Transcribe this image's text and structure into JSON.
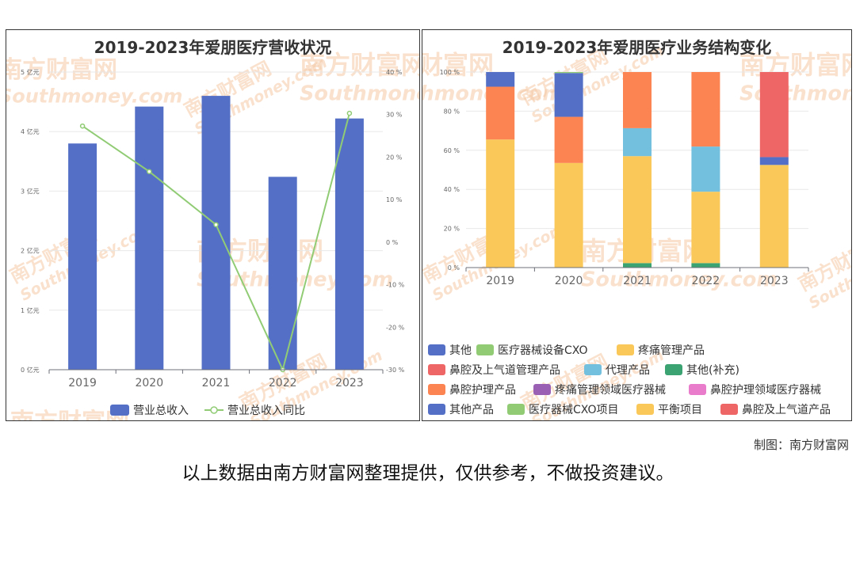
{
  "left_panel": {
    "title": "2019-2023年爱朋医疗营收状况"
  },
  "right_panel": {
    "title": "2019-2023年爱朋医疗业务结构变化"
  },
  "watermark": {
    "cn": "南方财富网",
    "en": "Southmoney.com"
  },
  "credit": "制图：南方财富网",
  "disclaimer": "以上数据由南方财富网整理提供，仅供参考，不做投资建议。",
  "colors": {
    "bar": "#5470c6",
    "line": "#91cc75",
    "watermark": "#f5c9a5"
  },
  "chart_data": [
    {
      "type": "bar",
      "title": "2019-2023年爱朋医疗营收状况",
      "categories": [
        "2019",
        "2020",
        "2021",
        "2022",
        "2023"
      ],
      "yleft_ticks": [
        "0 亿元",
        "1 亿元",
        "2 亿元",
        "3 亿元",
        "4 亿元",
        "5 亿元"
      ],
      "yright_ticks": [
        "-30 %",
        "-20 %",
        "-10 %",
        "0 %",
        "10 %",
        "20 %",
        "30 %",
        "40 %"
      ],
      "ylim_left": [
        0,
        5
      ],
      "ylim_right": [
        -30,
        40
      ],
      "series": [
        {
          "name": "营业总收入",
          "type": "bar",
          "axis": "left",
          "color": "#5470c6",
          "values": [
            3.8,
            4.42,
            4.6,
            3.24,
            4.22
          ]
        },
        {
          "name": "营业总收入同比",
          "type": "line",
          "axis": "right",
          "color": "#91cc75",
          "values": [
            27.3,
            16.6,
            4.1,
            -30.0,
            30.3
          ]
        }
      ],
      "legend_position": "bottom",
      "grid": true
    },
    {
      "type": "bar",
      "stacked": true,
      "title": "2019-2023年爱朋医疗业务结构变化",
      "categories": [
        "2019",
        "2020",
        "2021",
        "2022",
        "2023"
      ],
      "y_ticks": [
        "0 %",
        "20 %",
        "40 %",
        "60 %",
        "80 %",
        "100 %"
      ],
      "ylim": [
        0,
        100
      ],
      "series": [
        {
          "name": "其他",
          "color": "#5470c6",
          "values": [
            7.5,
            0,
            0,
            0,
            0
          ]
        },
        {
          "name": "医疗器械设备CXO",
          "color": "#91cc75",
          "values": [
            0,
            0.5,
            0,
            0,
            0
          ]
        },
        {
          "name": "疼痛管理产品",
          "color": "#fac858",
          "values": [
            65.5,
            53.5,
            54.7,
            36.5,
            0
          ]
        },
        {
          "name": "鼻腔及上气道管理产品",
          "color": "#ee6666",
          "values": [
            0,
            0,
            0,
            0,
            0
          ]
        },
        {
          "name": "代理产品",
          "color": "#73c0de",
          "values": [
            0,
            0,
            14.3,
            23.1,
            0
          ]
        },
        {
          "name": "其他(补充)",
          "color": "#3ba272",
          "values": [
            0,
            0,
            2.3,
            2.3,
            0
          ]
        },
        {
          "name": "鼻腔护理产品",
          "color": "#fc8452",
          "values": [
            27.0,
            23.6,
            28.7,
            38.1,
            0
          ]
        },
        {
          "name": "疼痛管理领域医疗器械",
          "color": "#9a60b4",
          "values": [
            0,
            0,
            0,
            0,
            0
          ]
        },
        {
          "name": "鼻腔护理领域医疗器械",
          "color": "#ea7ccc",
          "values": [
            0,
            0,
            0,
            0,
            0
          ]
        },
        {
          "name": "其他产品",
          "color": "#5470c6",
          "values": [
            0,
            22.4,
            0,
            0,
            4.0
          ]
        },
        {
          "name": "医疗器械CXO项目",
          "color": "#91cc75",
          "values": [
            0,
            0,
            0,
            0,
            0
          ]
        },
        {
          "name": "平衡项目",
          "color": "#fac858",
          "values": [
            0,
            0,
            0,
            0,
            52.5
          ]
        },
        {
          "name": "鼻腔及上气道产品",
          "color": "#ee6666",
          "values": [
            0,
            0,
            0,
            0,
            43.5
          ]
        }
      ],
      "legend_position": "bottom",
      "grid": true
    }
  ]
}
